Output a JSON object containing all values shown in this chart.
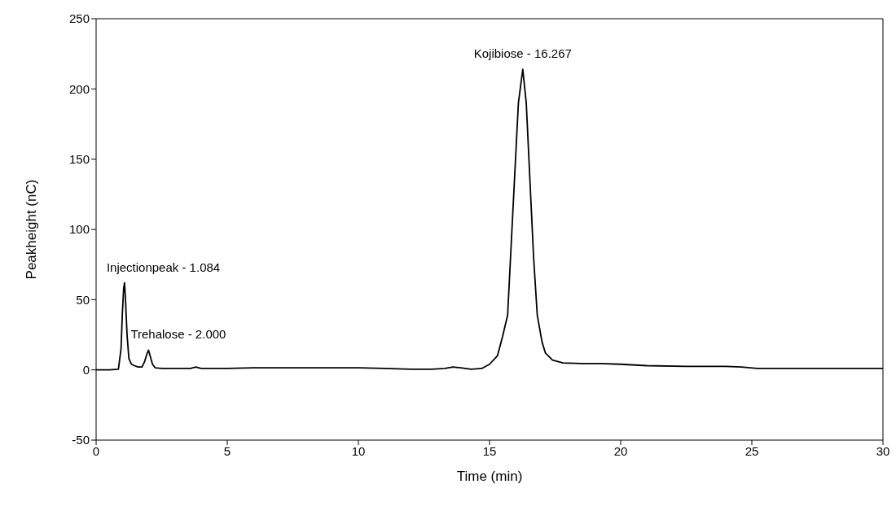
{
  "chart_data": {
    "type": "line",
    "xlabel": "Time (min)",
    "ylabel": "Peakheight (nC)",
    "xlim": [
      0,
      30
    ],
    "xticks": [
      0,
      5,
      10,
      15,
      20,
      25,
      30
    ],
    "ylim": [
      -50,
      250
    ],
    "yticks": [
      -50,
      0,
      50,
      100,
      150,
      200,
      250
    ],
    "grid": false,
    "marker": "none",
    "line_style": "solid",
    "series": [
      {
        "color": "#000000",
        "x": [
          0,
          0.5,
          0.85,
          0.95,
          1.0,
          1.05,
          1.084,
          1.12,
          1.18,
          1.25,
          1.35,
          1.46,
          1.6,
          1.75,
          1.85,
          1.95,
          2.0,
          2.06,
          2.15,
          2.25,
          2.5,
          3.0,
          3.6,
          3.8,
          4.0,
          5,
          6,
          8,
          10,
          11,
          12,
          12.8,
          13.3,
          13.6,
          13.9,
          14.3,
          14.7,
          15.0,
          15.3,
          15.5,
          15.69,
          15.8,
          15.95,
          16.1,
          16.267,
          16.4,
          16.54,
          16.68,
          16.82,
          17.0,
          17.13,
          17.4,
          17.8,
          18.5,
          19.2,
          20,
          21,
          22.5,
          24,
          24.6,
          25.2,
          26,
          28,
          30
        ],
        "values": [
          0,
          0,
          0.5,
          15,
          40,
          58,
          62,
          50,
          25,
          8,
          4,
          3,
          2,
          2,
          6,
          12,
          14,
          10,
          4,
          1.5,
          1,
          1,
          1,
          2,
          1,
          1,
          1.5,
          1.5,
          1.5,
          1,
          0.5,
          0.5,
          1,
          2,
          1.5,
          0.5,
          1,
          4,
          10,
          24,
          39,
          80,
          135,
          190,
          214,
          190,
          135,
          80,
          39,
          20,
          12,
          7,
          5,
          4.5,
          4.5,
          4,
          3,
          2.5,
          2.5,
          2,
          1,
          1,
          1,
          1
        ]
      }
    ],
    "annotations": [
      {
        "text": "Injectionpeak - 1.084",
        "x": 1.084,
        "y": 62
      },
      {
        "text": "Trehalose - 2.000",
        "x": 2.0,
        "y": 14
      },
      {
        "text": "Kojibiose - 16.267",
        "x": 16.267,
        "y": 214
      }
    ]
  }
}
